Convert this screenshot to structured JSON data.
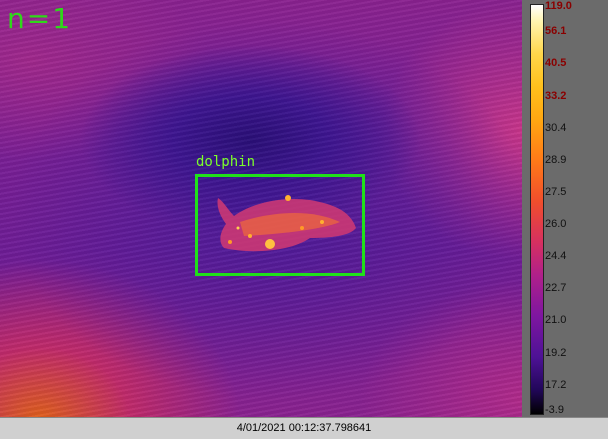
{
  "overlay": {
    "count_label": "n=1",
    "detection_label": "dolphin",
    "box_color": "#20e01a"
  },
  "colorbar": {
    "ticks": [
      "119.0",
      "56.1",
      "40.5",
      "33.2",
      "30.4",
      "28.9",
      "27.5",
      "26.0",
      "24.4",
      "22.7",
      "21.0",
      "19.2",
      "17.2",
      "-3.9"
    ],
    "palette": [
      "#ffffff",
      "#ffd64a",
      "#ff7a18",
      "#d63060",
      "#7e16a0",
      "#22075a",
      "#000000"
    ]
  },
  "status": {
    "timestamp": "4/01/2021 00:12:37.798641"
  }
}
